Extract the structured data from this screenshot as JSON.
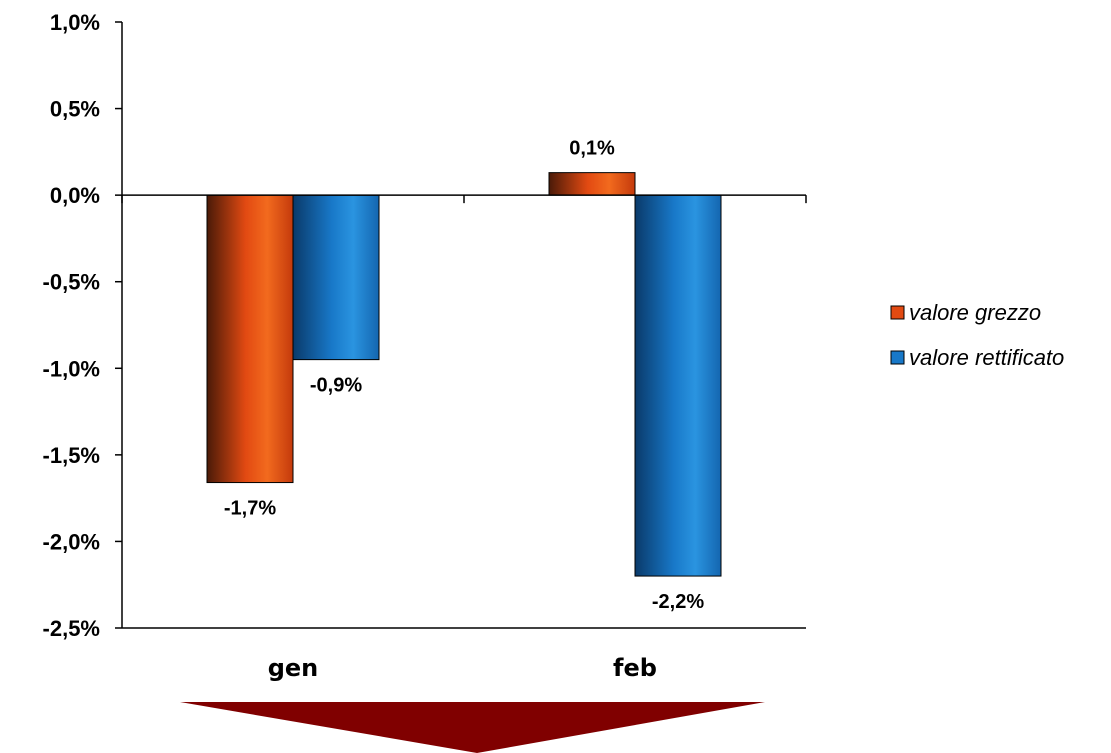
{
  "chart_data": {
    "type": "bar",
    "categories": [
      "gen",
      "feb"
    ],
    "series": [
      {
        "name": "valore grezzo",
        "values": [
          -1.7,
          0.1
        ],
        "labels": [
          "-1,7%",
          "0,1%"
        ],
        "color": "#e24a12"
      },
      {
        "name": "valore rettificato",
        "values": [
          -0.9,
          -2.2
        ],
        "labels": [
          "-0,9%",
          "-2,2%"
        ],
        "color": "#1878c8"
      }
    ],
    "bar_heights": [
      [
        -1.66,
        0.13
      ],
      [
        -0.95,
        -2.2
      ]
    ],
    "ylim": [
      -2.5,
      1.0
    ],
    "yticks": [
      1.0,
      0.5,
      0.0,
      -0.5,
      -1.0,
      -1.5,
      -2.0,
      -2.5
    ],
    "ytick_labels": [
      "1,0%",
      "0,5%",
      "0,0%",
      "-0,5%",
      "-1,0%",
      "-1,5%",
      "-2,0%",
      "-2,5%"
    ],
    "title": "",
    "xlabel": "",
    "ylabel": "",
    "legend_position": "right",
    "grid": false,
    "arrow_color": "#800000"
  }
}
